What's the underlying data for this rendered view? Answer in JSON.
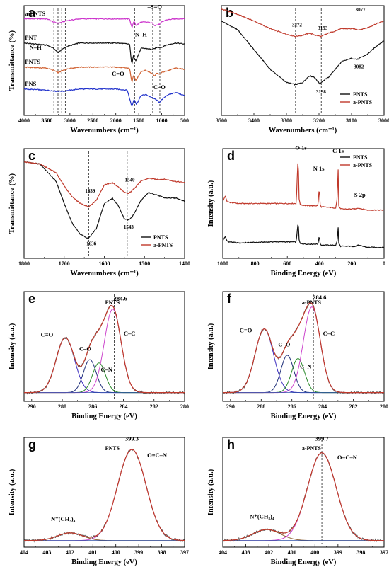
{
  "chart_data": [
    {
      "panel": "a",
      "type": "line",
      "xlabel": "Wavenumbers (cm⁻¹)",
      "ylabel": "Transmittance (%)",
      "xlim": [
        4000,
        500
      ],
      "xticks": [
        4000,
        3500,
        3000,
        2500,
        2000,
        1500,
        1000,
        500
      ],
      "series": [
        {
          "name": "a-PNTS",
          "color": "#cc33cc",
          "offset": 0.88,
          "x": [
            4000,
            3500,
            3350,
            3250,
            3100,
            2800,
            2000,
            1700,
            1650,
            1600,
            1560,
            1450,
            1300,
            1200,
            1150,
            1050,
            1000,
            900,
            700,
            500
          ],
          "y": [
            0,
            0,
            -0.03,
            -0.04,
            -0.02,
            0,
            0,
            0,
            -0.08,
            -0.02,
            -0.06,
            -0.03,
            -0.03,
            -0.04,
            -0.06,
            -0.05,
            -0.03,
            -0.01,
            0,
            0
          ]
        },
        {
          "name": "PNT",
          "color": "#111111",
          "offset": 0.66,
          "x": [
            4000,
            3500,
            3350,
            3260,
            3180,
            3050,
            2800,
            2000,
            1700,
            1650,
            1620,
            1560,
            1450,
            1350,
            1200,
            1100,
            1000,
            900,
            700,
            500
          ],
          "y": [
            0,
            -0.02,
            -0.05,
            -0.09,
            -0.06,
            -0.03,
            0,
            0,
            -0.01,
            -0.2,
            -0.12,
            -0.16,
            -0.05,
            -0.05,
            -0.06,
            -0.04,
            -0.04,
            -0.02,
            0,
            -0.01
          ]
        },
        {
          "name": "PNTS",
          "color": "#d06030",
          "offset": 0.44,
          "x": [
            4000,
            3500,
            3350,
            3260,
            3150,
            3000,
            2800,
            2000,
            1700,
            1650,
            1620,
            1560,
            1450,
            1350,
            1200,
            1150,
            1100,
            1050,
            1000,
            700,
            500
          ],
          "y": [
            0,
            -0.01,
            -0.03,
            -0.05,
            -0.03,
            -0.01,
            0,
            0,
            -0.01,
            -0.14,
            -0.08,
            -0.12,
            -0.04,
            -0.03,
            -0.06,
            -0.08,
            -0.05,
            -0.07,
            -0.05,
            -0.01,
            -0.02
          ]
        },
        {
          "name": "PNS",
          "color": "#2233cc",
          "offset": 0.24,
          "x": [
            4000,
            3500,
            3300,
            3150,
            3000,
            2800,
            2000,
            1750,
            1650,
            1600,
            1550,
            1450,
            1350,
            1250,
            1150,
            1050,
            1000,
            900,
            700,
            500
          ],
          "y": [
            0,
            -0.01,
            -0.02,
            -0.02,
            -0.01,
            0,
            0,
            -0.01,
            -0.16,
            -0.09,
            -0.14,
            -0.06,
            -0.05,
            -0.07,
            -0.09,
            -0.12,
            -0.1,
            -0.06,
            -0.03,
            -0.06
          ]
        }
      ],
      "dashed_x": [
        3350,
        3260,
        3180,
        3100,
        1650,
        1590,
        1540,
        1195,
        1040
      ],
      "annotations": [
        {
          "text": "a-PNTS",
          "x": 3980,
          "y": 0.91
        },
        {
          "text": "PNT",
          "x": 3980,
          "y": 0.69
        },
        {
          "text": "N–H",
          "x": 3750,
          "y": 0.6
        },
        {
          "text": "PNTS",
          "x": 3980,
          "y": 0.47
        },
        {
          "text": "PNS",
          "x": 3980,
          "y": 0.27
        },
        {
          "text": "–S=O",
          "x": 1150,
          "y": 0.97
        },
        {
          "text": "N–H",
          "x": 1450,
          "y": 0.72
        },
        {
          "text": "C=O",
          "x": 1950,
          "y": 0.36
        },
        {
          "text": "C–O",
          "x": 1050,
          "y": 0.24
        }
      ]
    },
    {
      "panel": "b",
      "type": "line",
      "xlabel": "Wavenumbers (cm⁻¹)",
      "ylabel": "",
      "xlim": [
        3500,
        3000
      ],
      "xticks": [
        3500,
        3400,
        3300,
        3200,
        3100,
        3000
      ],
      "legend_position": "bottom-right",
      "series": [
        {
          "name": "PNTS",
          "color": "#111111",
          "x": [
            3500,
            3450,
            3400,
            3350,
            3300,
            3272,
            3250,
            3230,
            3215,
            3198,
            3170,
            3130,
            3100,
            3082,
            3050,
            3020,
            3000
          ],
          "y": [
            0.86,
            0.78,
            0.6,
            0.42,
            0.3,
            0.28,
            0.3,
            0.36,
            0.35,
            0.29,
            0.35,
            0.49,
            0.52,
            0.51,
            0.56,
            0.64,
            0.68
          ]
        },
        {
          "name": "a-PNTS",
          "color": "#c0392b",
          "x": [
            3500,
            3450,
            3400,
            3350,
            3300,
            3272,
            3250,
            3230,
            3210,
            3193,
            3170,
            3130,
            3100,
            3077,
            3050,
            3020,
            3000
          ],
          "y": [
            0.97,
            0.92,
            0.86,
            0.79,
            0.74,
            0.72,
            0.73,
            0.75,
            0.73,
            0.72,
            0.75,
            0.79,
            0.79,
            0.78,
            0.8,
            0.84,
            0.86
          ]
        }
      ],
      "dashed_x": [
        3272,
        3193,
        3077
      ],
      "peak_labels": [
        {
          "text": "3272",
          "x": 3272,
          "y": 0.81
        },
        {
          "text": "3193",
          "x": 3193,
          "y": 0.78
        },
        {
          "text": "3077",
          "x": 3077,
          "y": 0.95
        },
        {
          "text": "3198",
          "x": 3198,
          "y": 0.2
        },
        {
          "text": "3082",
          "x": 3082,
          "y": 0.43
        }
      ]
    },
    {
      "panel": "c",
      "type": "line",
      "xlabel": "Wavenumbers (cm⁻¹)",
      "ylabel": "Transmittance (%)",
      "xlim": [
        1800,
        1400
      ],
      "xticks": [
        1800,
        1700,
        1600,
        1500,
        1400
      ],
      "legend_position": "bottom-right",
      "series": [
        {
          "name": "PNTS",
          "color": "#111111",
          "x": [
            1800,
            1760,
            1720,
            1700,
            1680,
            1660,
            1640,
            1620,
            1600,
            1580,
            1565,
            1550,
            1540,
            1530,
            1510,
            1490,
            1470,
            1450,
            1420,
            1400
          ],
          "y": [
            0.88,
            0.86,
            0.7,
            0.5,
            0.32,
            0.22,
            0.18,
            0.27,
            0.5,
            0.55,
            0.48,
            0.36,
            0.35,
            0.38,
            0.52,
            0.6,
            0.58,
            0.55,
            0.55,
            0.52
          ]
        },
        {
          "name": "a-PNTS",
          "color": "#c0392b",
          "x": [
            1800,
            1760,
            1720,
            1700,
            1680,
            1660,
            1639,
            1620,
            1600,
            1580,
            1565,
            1550,
            1540,
            1530,
            1510,
            1490,
            1470,
            1450,
            1420,
            1400
          ],
          "y": [
            0.88,
            0.86,
            0.78,
            0.66,
            0.56,
            0.5,
            0.47,
            0.53,
            0.67,
            0.69,
            0.65,
            0.6,
            0.59,
            0.62,
            0.7,
            0.73,
            0.72,
            0.72,
            0.7,
            0.69
          ]
        }
      ],
      "dashed_x": [
        1639,
        1543
      ],
      "peak_labels": [
        {
          "text": "1639",
          "x": 1639,
          "y": 0.6
        },
        {
          "text": "1540",
          "x": 1540,
          "y": 0.7
        },
        {
          "text": "1636",
          "x": 1636,
          "y": 0.12
        },
        {
          "text": "1543",
          "x": 1543,
          "y": 0.27
        }
      ]
    },
    {
      "panel": "d",
      "type": "line",
      "xlabel": "Binding Energy (eV)",
      "ylabel": "Intensity (a.u.)",
      "xlim": [
        1000,
        0
      ],
      "xticks": [
        1000,
        800,
        600,
        400,
        200,
        0
      ],
      "legend_position": "top-right",
      "series": [
        {
          "name": "PNTS",
          "color": "#111111",
          "x": [
            1000,
            985,
            975,
            960,
            900,
            800,
            700,
            600,
            545,
            535,
            532,
            529,
            520,
            480,
            410,
            401,
            398,
            390,
            300,
            290,
            285,
            282,
            270,
            170,
            165,
            100,
            0
          ],
          "y": [
            0.16,
            0.2,
            0.16,
            0.15,
            0.14,
            0.145,
            0.15,
            0.15,
            0.15,
            0.3,
            0.36,
            0.18,
            0.135,
            0.13,
            0.13,
            0.21,
            0.14,
            0.12,
            0.12,
            0.16,
            0.3,
            0.14,
            0.11,
            0.11,
            0.12,
            0.1,
            0.1
          ]
        },
        {
          "name": "a-PNTS",
          "color": "#c0392b",
          "x": [
            1000,
            985,
            975,
            960,
            900,
            800,
            700,
            600,
            545,
            535,
            532,
            529,
            520,
            480,
            410,
            401,
            398,
            390,
            300,
            290,
            285,
            282,
            270,
            170,
            165,
            100,
            0
          ],
          "y": [
            0.52,
            0.57,
            0.52,
            0.51,
            0.5,
            0.5,
            0.5,
            0.5,
            0.5,
            0.85,
            0.97,
            0.56,
            0.49,
            0.48,
            0.48,
            0.66,
            0.49,
            0.47,
            0.46,
            0.55,
            0.86,
            0.48,
            0.45,
            0.45,
            0.46,
            0.44,
            0.44
          ]
        }
      ],
      "annotations": [
        {
          "text": "O 1s",
          "x": 515,
          "y": 0.99
        },
        {
          "text": "N 1s",
          "x": 405,
          "y": 0.8
        },
        {
          "text": "C 1s",
          "x": 285,
          "y": 0.96
        },
        {
          "text": "S 2p",
          "x": 150,
          "y": 0.56
        }
      ]
    },
    {
      "panel": "e",
      "title": "PNTS",
      "type": "line",
      "xlabel": "Binding Energy (eV)",
      "ylabel": "Intensity (a.u.)",
      "xlim": [
        290.5,
        280
      ],
      "xticks": [
        290,
        288,
        286,
        284,
        282,
        280
      ],
      "peaks": [
        {
          "label": "C=O",
          "center": 287.8,
          "height": 0.5,
          "width": 0.6,
          "color": "#3a2bbf"
        },
        {
          "label": "C–O",
          "center": 286.2,
          "height": 0.3,
          "width": 0.42,
          "color": "#20307a"
        },
        {
          "label": "C–N",
          "center": 285.6,
          "height": 0.27,
          "width": 0.42,
          "color": "#2a8a2a"
        },
        {
          "label": "C–C",
          "center": 284.7,
          "height": 0.76,
          "width": 0.55,
          "color": "#cc44cc"
        }
      ],
      "baseline": 0.08,
      "envelope_color": "#c0392b",
      "raw_color": "#555555",
      "dashed_x": [
        284.6
      ],
      "annotations": [
        {
          "text": "284.6",
          "x": 284.2,
          "y": 0.92
        },
        {
          "text": "C=O",
          "x": 289.0,
          "y": 0.59
        },
        {
          "text": "C–O",
          "x": 286.5,
          "y": 0.46
        },
        {
          "text": "C–N",
          "x": 285.1,
          "y": 0.27
        },
        {
          "text": "C–C",
          "x": 283.6,
          "y": 0.6
        }
      ]
    },
    {
      "panel": "f",
      "title": "a-PNTS",
      "type": "line",
      "xlabel": "Binding Energy (eV)",
      "ylabel": "Intensity (a.u.)",
      "xlim": [
        290.5,
        280
      ],
      "xticks": [
        290,
        288,
        286,
        284,
        282,
        280
      ],
      "peaks": [
        {
          "label": "C=O",
          "center": 287.8,
          "height": 0.58,
          "width": 0.6,
          "color": "#3a2bbf"
        },
        {
          "label": "C–O",
          "center": 286.3,
          "height": 0.34,
          "width": 0.42,
          "color": "#20307a"
        },
        {
          "label": "C–N",
          "center": 285.6,
          "height": 0.31,
          "width": 0.42,
          "color": "#2a8a2a"
        },
        {
          "label": "C–C",
          "center": 284.7,
          "height": 0.78,
          "width": 0.55,
          "color": "#cc44cc"
        }
      ],
      "baseline": 0.08,
      "envelope_color": "#c0392b",
      "raw_color": "#555555",
      "dashed_x": [
        284.6
      ],
      "annotations": [
        {
          "text": "284.6",
          "x": 284.2,
          "y": 0.93
        },
        {
          "text": "C=O",
          "x": 289.0,
          "y": 0.63
        },
        {
          "text": "C–O",
          "x": 286.5,
          "y": 0.5
        },
        {
          "text": "C–N",
          "x": 285.1,
          "y": 0.3
        },
        {
          "text": "C–C",
          "x": 283.6,
          "y": 0.6
        }
      ]
    },
    {
      "panel": "g",
      "title": "PNTS",
      "type": "line",
      "xlabel": "Binding Energy (eV)",
      "ylabel": "Intensity (a.u.)",
      "xlim": [
        404,
        397
      ],
      "xticks": [
        404,
        403,
        402,
        401,
        400,
        399,
        398,
        397
      ],
      "peaks": [
        {
          "label": "N⁺(CH₃)₄",
          "center": 402.0,
          "height": 0.07,
          "width": 0.55,
          "color": "#8a5a2a"
        },
        {
          "label": "O=C–N",
          "center": 399.3,
          "height": 0.83,
          "width": 0.62,
          "color": "#cc44cc"
        }
      ],
      "baseline": 0.06,
      "envelope_color": "#c0392b",
      "raw_color": "#555555",
      "dashed_x": [
        399.3
      ],
      "annotations": [
        {
          "text": "399.3",
          "x": 399.3,
          "y": 0.97
        },
        {
          "text": "O=C–N",
          "x": 398.2,
          "y": 0.82
        },
        {
          "text": "N⁺(CH₃)₄",
          "x": 402.3,
          "y": 0.24
        }
      ]
    },
    {
      "panel": "h",
      "title": "a-PNTS",
      "type": "line",
      "xlabel": "Binding Energy (eV)",
      "ylabel": "Intensity (a.u.)",
      "xlim": [
        404,
        397
      ],
      "xticks": [
        404,
        403,
        402,
        401,
        400,
        399,
        398,
        397
      ],
      "peaks": [
        {
          "label": "N⁺(CH₃)₄",
          "center": 402.1,
          "height": 0.1,
          "width": 0.6,
          "color": "#8a5a2a"
        },
        {
          "label": "O=C–N",
          "center": 399.7,
          "height": 0.8,
          "width": 0.62,
          "color": "#cc44cc"
        }
      ],
      "baseline": 0.06,
      "envelope_color": "#c0392b",
      "raw_color": "#555555",
      "dashed_x": [
        399.7
      ],
      "annotations": [
        {
          "text": "399.7",
          "x": 399.7,
          "y": 0.97
        },
        {
          "text": "O=C–N",
          "x": 398.6,
          "y": 0.8
        },
        {
          "text": "N⁺(CH₃)₄",
          "x": 402.3,
          "y": 0.26
        }
      ]
    }
  ]
}
